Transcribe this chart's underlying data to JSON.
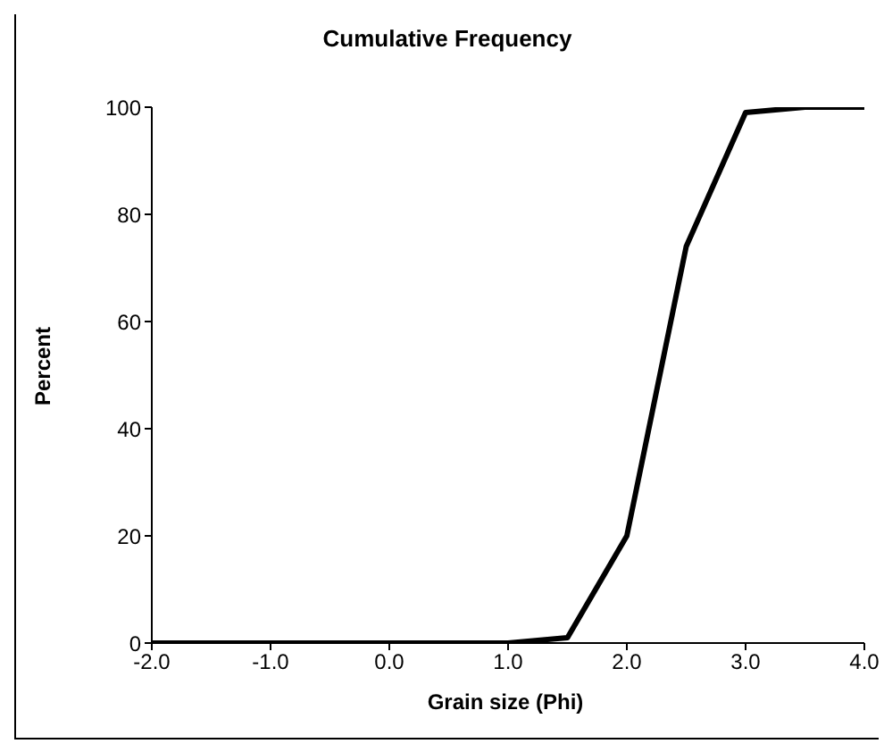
{
  "chart_data": {
    "type": "line",
    "title": "Cumulative Frequency",
    "xlabel": "Grain size (Phi)",
    "ylabel": "Percent",
    "x": [
      -2.0,
      -1.5,
      -1.0,
      -0.5,
      0.0,
      0.5,
      1.0,
      1.5,
      2.0,
      2.5,
      3.0,
      3.5,
      4.0
    ],
    "series": [
      {
        "color": "#000000",
        "values": [
          0,
          0,
          0,
          0,
          0,
          0,
          0,
          1,
          20,
          74,
          99,
          100,
          100
        ]
      }
    ],
    "xlim": [
      -2,
      4
    ],
    "xticks": [
      {
        "value": -2,
        "label": "-2.0"
      },
      {
        "value": -1,
        "label": "-1.0"
      },
      {
        "value": 0,
        "label": "0.0"
      },
      {
        "value": 1,
        "label": "1.0"
      },
      {
        "value": 2,
        "label": "2.0"
      },
      {
        "value": 3,
        "label": "3.0"
      },
      {
        "value": 4,
        "label": "4.0"
      }
    ],
    "ylim": [
      0,
      100
    ],
    "yticks": [
      0,
      20,
      40,
      60,
      80,
      100
    ],
    "grid": false,
    "legend": false,
    "marker": "none",
    "line_style": "solid"
  }
}
